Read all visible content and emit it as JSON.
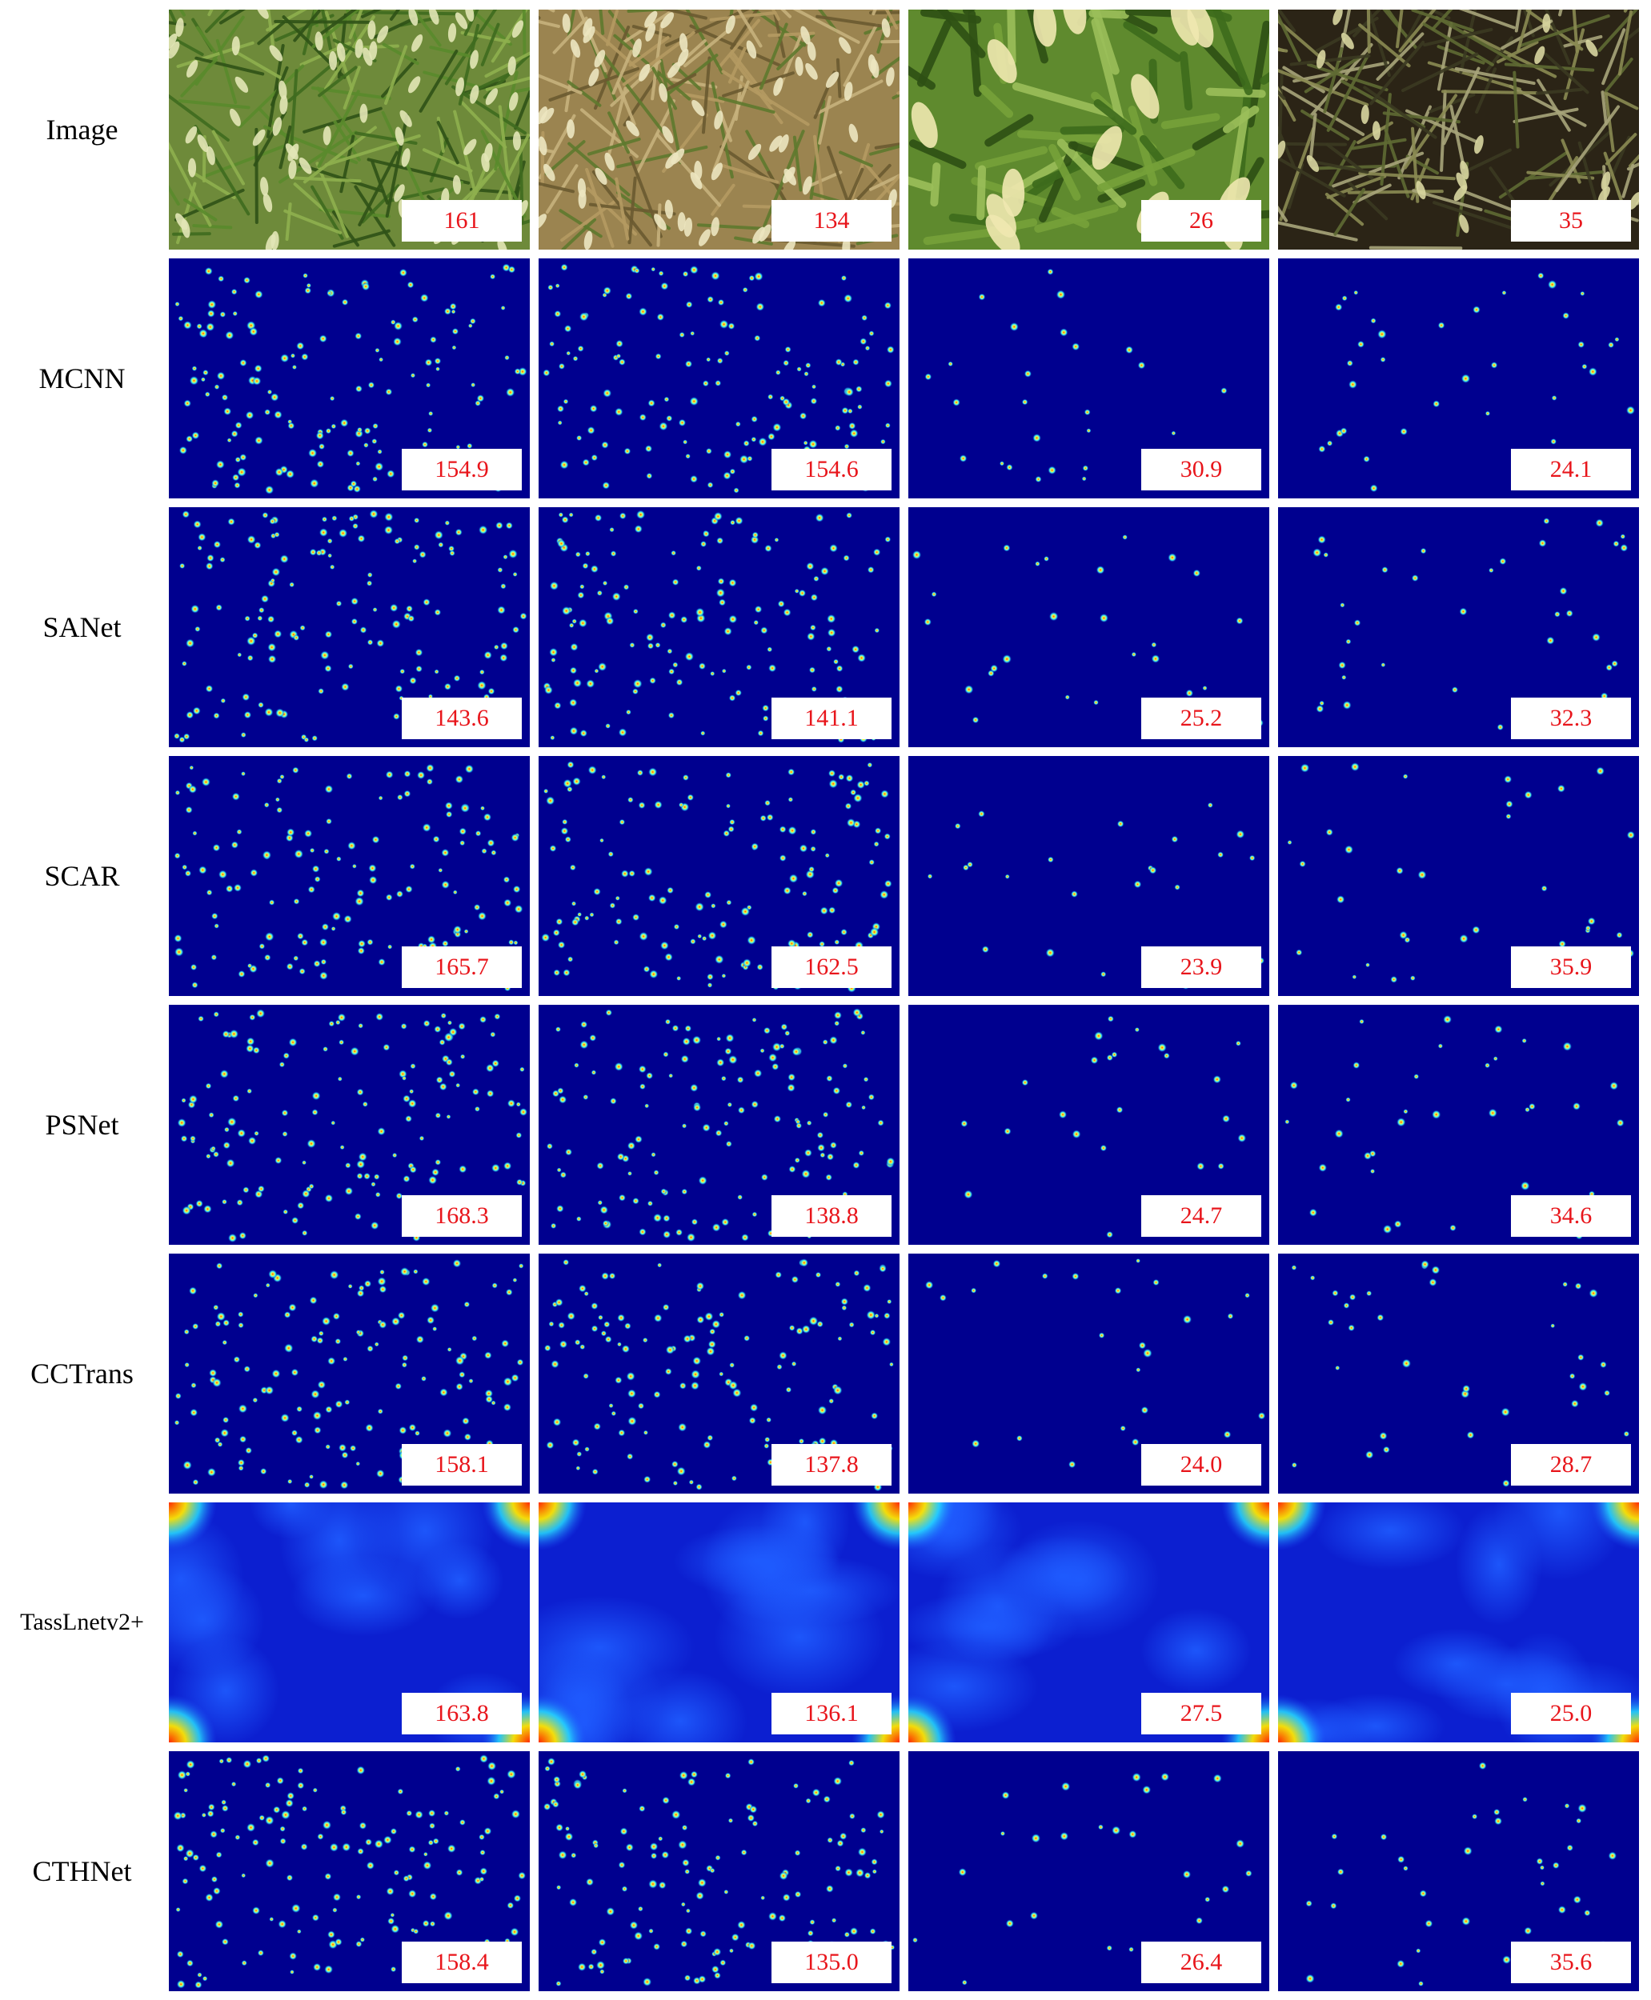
{
  "figure": {
    "columns": [
      {
        "scene": "dense wheel-field wheat, mostly green",
        "ground_truth": "161"
      },
      {
        "scene": "dense wheat with dry brown leaves",
        "ground_truth": "134"
      },
      {
        "scene": "close-up wheat spikes among green leaves",
        "ground_truth": "26"
      },
      {
        "scene": "sparse wheat over dark soil",
        "ground_truth": "35"
      }
    ],
    "rows": [
      {
        "label": "Image",
        "type": "photo",
        "counts": [
          "161",
          "134",
          "26",
          "35"
        ]
      },
      {
        "label": "MCNN",
        "type": "density",
        "counts": [
          "154.9",
          "154.6",
          "30.9",
          "24.1"
        ]
      },
      {
        "label": "SANet",
        "type": "density",
        "counts": [
          "143.6",
          "141.1",
          "25.2",
          "32.3"
        ]
      },
      {
        "label": "SCAR",
        "type": "density",
        "counts": [
          "165.7",
          "162.5",
          "23.9",
          "35.9"
        ]
      },
      {
        "label": "PSNet",
        "type": "density",
        "counts": [
          "168.3",
          "138.8",
          "24.7",
          "34.6"
        ]
      },
      {
        "label": "CCTrans",
        "type": "density",
        "counts": [
          "158.1",
          "137.8",
          "24.0",
          "28.7"
        ]
      },
      {
        "label": "TassLnetv2+",
        "type": "blurry-density",
        "counts": [
          "163.8",
          "136.1",
          "27.5",
          "25.0"
        ]
      },
      {
        "label": "CTHNet",
        "type": "density",
        "counts": [
          "158.4",
          "135.0",
          "26.4",
          "35.6"
        ]
      }
    ],
    "colors": {
      "density_background": "#00008f",
      "count_text": "#e8151b",
      "count_box": "#ffffff"
    }
  }
}
